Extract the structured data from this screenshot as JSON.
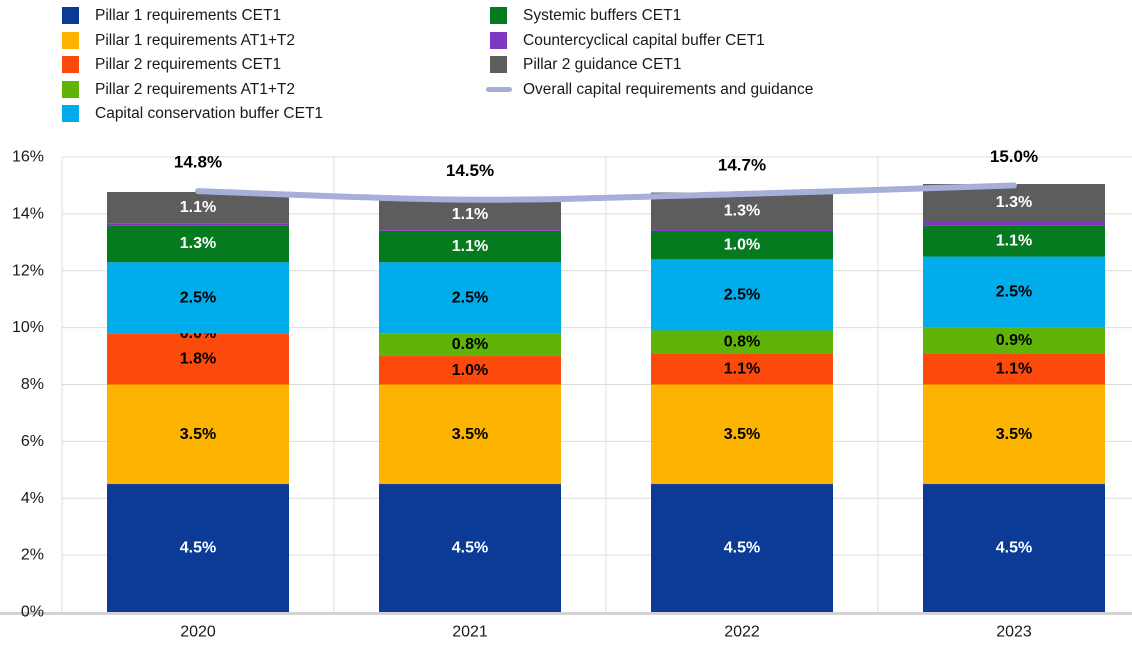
{
  "figure": {
    "background": "#ffffff",
    "text_color": "#1a1a1a"
  },
  "legend": {
    "columns": [
      {
        "items": [
          {
            "label": "Pillar 1 requirements CET1",
            "color": "#0B3A97",
            "swatch": "square"
          },
          {
            "label": "Pillar 1 requirements AT1+T2",
            "color": "#FDB400",
            "swatch": "square"
          },
          {
            "label": "Pillar 2 requirements CET1",
            "color": "#FB4A0B",
            "swatch": "square"
          },
          {
            "label": "Pillar 2 requirements AT1+T2",
            "color": "#60B307",
            "swatch": "square"
          },
          {
            "label": "Capital conservation buffer CET1",
            "color": "#00ACEA",
            "swatch": "square"
          }
        ]
      },
      {
        "items": [
          {
            "label": "Systemic buffers CET1",
            "color": "#067A1F",
            "swatch": "square"
          },
          {
            "label": "Countercyclical capital buffer CET1",
            "color": "#7F36C3",
            "swatch": "square"
          },
          {
            "label": "Pillar 2 guidance CET1",
            "color": "#5D5D5D",
            "swatch": "square"
          },
          {
            "label": "Overall capital requirements and guidance",
            "color": "#A6AFD8",
            "swatch": "line"
          }
        ]
      }
    ]
  },
  "chart_data": {
    "type": "bar",
    "subtype": "stacked-bars-with-overlay-line",
    "title": "",
    "xlabel": "",
    "ylabel": "",
    "legend_position": "top",
    "grid": {
      "horizontal": true,
      "vertical_category_separators": true
    },
    "ylim": [
      0,
      16
    ],
    "yticks": [
      {
        "value": 0,
        "label": "0%"
      },
      {
        "value": 2,
        "label": "2%"
      },
      {
        "value": 4,
        "label": "4%"
      },
      {
        "value": 6,
        "label": "6%"
      },
      {
        "value": 8,
        "label": "8%"
      },
      {
        "value": 10,
        "label": "10%"
      },
      {
        "value": 12,
        "label": "12%"
      },
      {
        "value": 14,
        "label": "14%"
      },
      {
        "value": 16,
        "label": "16%"
      }
    ],
    "categories": [
      "2020",
      "2021",
      "2022",
      "2023"
    ],
    "series": [
      {
        "name": "Pillar 1 requirements CET1",
        "color": "#0B3A97",
        "label_color": "#FFFFFF",
        "values": [
          4.5,
          4.5,
          4.5,
          4.5
        ],
        "labels": [
          "4.5%",
          "4.5%",
          "4.5%",
          "4.5%"
        ]
      },
      {
        "name": "Pillar 1 requirements AT1+T2",
        "color": "#FDB400",
        "label_color": "#000000",
        "values": [
          3.5,
          3.5,
          3.5,
          3.5
        ],
        "labels": [
          "3.5%",
          "3.5%",
          "3.5%",
          "3.5%"
        ]
      },
      {
        "name": "Pillar 2 requirements CET1",
        "color": "#FB4A0B",
        "label_color": "#000000",
        "values": [
          1.8,
          1.0,
          1.1,
          1.1
        ],
        "labels": [
          "1.8%",
          "1.0%",
          "1.1%",
          "1.1%"
        ]
      },
      {
        "name": "Pillar 2 requirements AT1+T2",
        "color": "#60B307",
        "label_color": "#000000",
        "values": [
          0.0,
          0.8,
          0.8,
          0.9
        ],
        "labels": [
          "0.0%",
          "0.8%",
          "0.8%",
          "0.9%"
        ]
      },
      {
        "name": "Capital conservation buffer CET1",
        "color": "#00ACEA",
        "label_color": "#000000",
        "values": [
          2.5,
          2.5,
          2.5,
          2.5
        ],
        "labels": [
          "2.5%",
          "2.5%",
          "2.5%",
          "2.5%"
        ]
      },
      {
        "name": "Systemic buffers CET1",
        "color": "#067A1F",
        "label_color": "#FFFFFF",
        "values": [
          1.3,
          1.1,
          1.0,
          1.1
        ],
        "labels": [
          "1.3%",
          "1.1%",
          "1.0%",
          "1.1%"
        ]
      },
      {
        "name": "Countercyclical capital buffer CET1",
        "color": "#7F36C3",
        "label_color": "#FFFFFF",
        "values": [
          0.07,
          0.03,
          0.05,
          0.15
        ],
        "labels": [
          "",
          "",
          "",
          ""
        ]
      },
      {
        "name": "Pillar 2 guidance CET1",
        "color": "#5D5D5D",
        "label_color": "#FFFFFF",
        "values": [
          1.1,
          1.1,
          1.3,
          1.3
        ],
        "labels": [
          "1.1%",
          "1.1%",
          "1.3%",
          "1.3%"
        ]
      }
    ],
    "line_series": {
      "name": "Overall capital requirements and guidance",
      "color": "#A6AFD8",
      "values": [
        14.8,
        14.5,
        14.7,
        15.0
      ],
      "labels": [
        "14.8%",
        "14.5%",
        "14.7%",
        "15.0%"
      ]
    }
  }
}
